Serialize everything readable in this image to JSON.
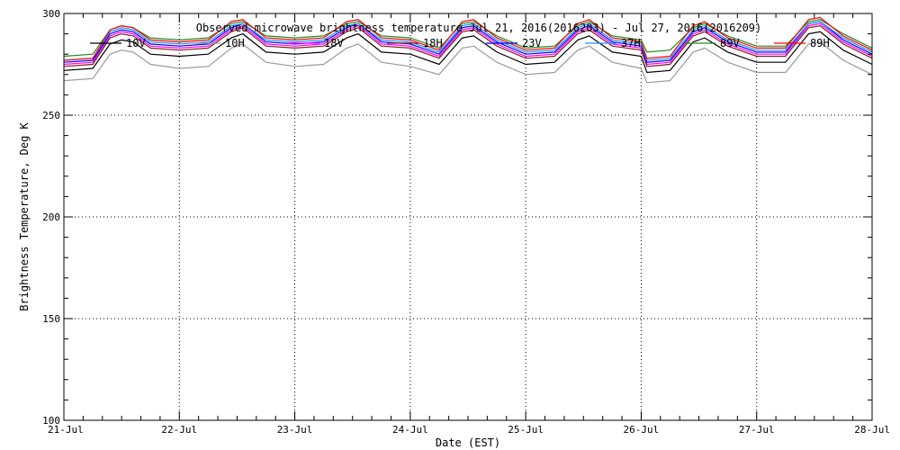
{
  "chart_data": {
    "type": "line",
    "title": "Observed microwave brightness temperature Jul 21, 2016(2016203) - Jul 27, 2016(2016209)",
    "xlabel": "Date (EST)",
    "ylabel": "Brightness Temperature, Deg K",
    "ylim": [
      100,
      300
    ],
    "xlim": [
      0,
      7
    ],
    "x_ticks": [
      0,
      1,
      2,
      3,
      4,
      5,
      6,
      7
    ],
    "x_tick_labels": [
      "21-Jul",
      "22-Jul",
      "23-Jul",
      "24-Jul",
      "25-Jul",
      "26-Jul",
      "27-Jul",
      "28-Jul"
    ],
    "y_ticks": [
      100,
      150,
      200,
      250,
      300
    ],
    "y_tick_labels": [
      "100",
      "150",
      "200",
      "250",
      "300"
    ],
    "grid": "dotted",
    "legend": "top",
    "x": [
      0.0,
      0.25,
      0.4,
      0.5,
      0.6,
      0.75,
      1.0,
      1.25,
      1.45,
      1.55,
      1.75,
      2.0,
      2.25,
      2.45,
      2.55,
      2.75,
      3.0,
      3.25,
      3.45,
      3.55,
      3.75,
      4.0,
      4.25,
      4.45,
      4.55,
      4.75,
      5.0,
      5.05,
      5.25,
      5.45,
      5.55,
      5.75,
      6.0,
      6.25,
      6.45,
      6.55,
      6.75,
      7.0
    ],
    "series": [
      {
        "name": "10V",
        "color": "#000000",
        "values": [
          272,
          273,
          285,
          287,
          286,
          280,
          279,
          280,
          288,
          290,
          281,
          280,
          281,
          288,
          290,
          281,
          280,
          275,
          288,
          289,
          281,
          275,
          276,
          287,
          289,
          281,
          279,
          271,
          272,
          286,
          288,
          281,
          276,
          276,
          290,
          291,
          282,
          275
        ]
      },
      {
        "name": "10H",
        "color": "#999999",
        "values": [
          267,
          268,
          280,
          282,
          281,
          275,
          273,
          274,
          283,
          285,
          276,
          274,
          275,
          283,
          285,
          276,
          274,
          270,
          283,
          284,
          276,
          270,
          271,
          282,
          284,
          276,
          273,
          266,
          267,
          281,
          283,
          276,
          271,
          271,
          285,
          286,
          277,
          270
        ]
      },
      {
        "name": "18V",
        "color": "#ff00ff",
        "values": [
          275,
          276,
          289,
          291,
          290,
          284,
          283,
          284,
          292,
          294,
          285,
          284,
          285,
          292,
          294,
          285,
          284,
          279,
          292,
          293,
          285,
          279,
          280,
          291,
          293,
          285,
          283,
          275,
          276,
          290,
          292,
          285,
          280,
          280,
          294,
          295,
          286,
          279
        ]
      },
      {
        "name": "18H",
        "color": "#8b1a1a",
        "values": [
          274,
          275,
          288,
          290,
          289,
          283,
          282,
          283,
          291,
          293,
          284,
          283,
          284,
          291,
          293,
          284,
          283,
          278,
          291,
          292,
          284,
          278,
          279,
          290,
          292,
          284,
          282,
          274,
          275,
          289,
          291,
          284,
          279,
          279,
          293,
          294,
          285,
          278
        ]
      },
      {
        "name": "23V",
        "color": "#0000ff",
        "values": [
          276,
          277,
          290,
          292,
          291,
          285,
          284,
          285,
          293,
          295,
          286,
          285,
          286,
          293,
          295,
          286,
          285,
          280,
          293,
          294,
          286,
          280,
          281,
          292,
          294,
          286,
          284,
          276,
          277,
          291,
          293,
          286,
          281,
          281,
          295,
          296,
          287,
          280
        ]
      },
      {
        "name": "37H",
        "color": "#1e90ff",
        "values": [
          277,
          278,
          291,
          293,
          292,
          286,
          285,
          286,
          294,
          295,
          287,
          286,
          287,
          294,
          295,
          287,
          286,
          281,
          294,
          295,
          287,
          281,
          282,
          293,
          295,
          287,
          285,
          277,
          278,
          292,
          294,
          287,
          282,
          282,
          295,
          296,
          288,
          281
        ]
      },
      {
        "name": "89V",
        "color": "#228b22",
        "values": [
          279,
          280,
          292,
          294,
          293,
          288,
          287,
          288,
          295,
          296,
          289,
          288,
          289,
          295,
          296,
          289,
          288,
          283,
          295,
          296,
          289,
          283,
          284,
          294,
          296,
          289,
          287,
          281,
          282,
          293,
          295,
          289,
          284,
          284,
          296,
          297,
          290,
          283
        ]
      },
      {
        "name": "89H",
        "color": "#ff0000",
        "values": [
          277,
          278,
          292,
          294,
          293,
          287,
          286,
          287,
          296,
          297,
          288,
          287,
          288,
          296,
          297,
          288,
          287,
          282,
          296,
          297,
          288,
          282,
          283,
          295,
          297,
          288,
          286,
          278,
          279,
          294,
          296,
          288,
          283,
          283,
          297,
          298,
          289,
          282
        ]
      }
    ]
  }
}
